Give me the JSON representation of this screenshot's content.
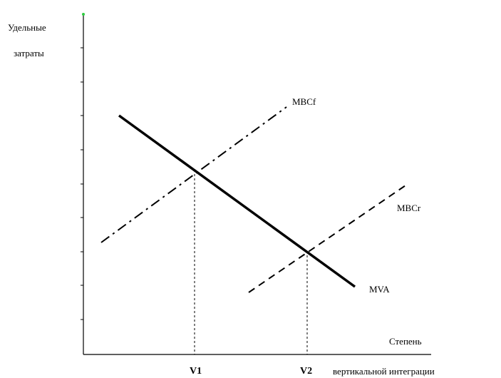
{
  "axes": {
    "y_label_line1": "Удельные",
    "y_label_line2": "затраты",
    "x_label_line1": "Степень",
    "x_label_line2": "вертикальной интеграции",
    "axis_color": "#000000",
    "y_arrow_tip_color": "#2ecc40"
  },
  "curves": {
    "mbcf": {
      "label": "MBCf",
      "style": "dash-dot"
    },
    "mbcr": {
      "label": "MBCr",
      "style": "dashed"
    },
    "mva": {
      "label": "MVA",
      "style": "solid-thick"
    }
  },
  "points": {
    "v1": "V1",
    "v2": "V2"
  }
}
